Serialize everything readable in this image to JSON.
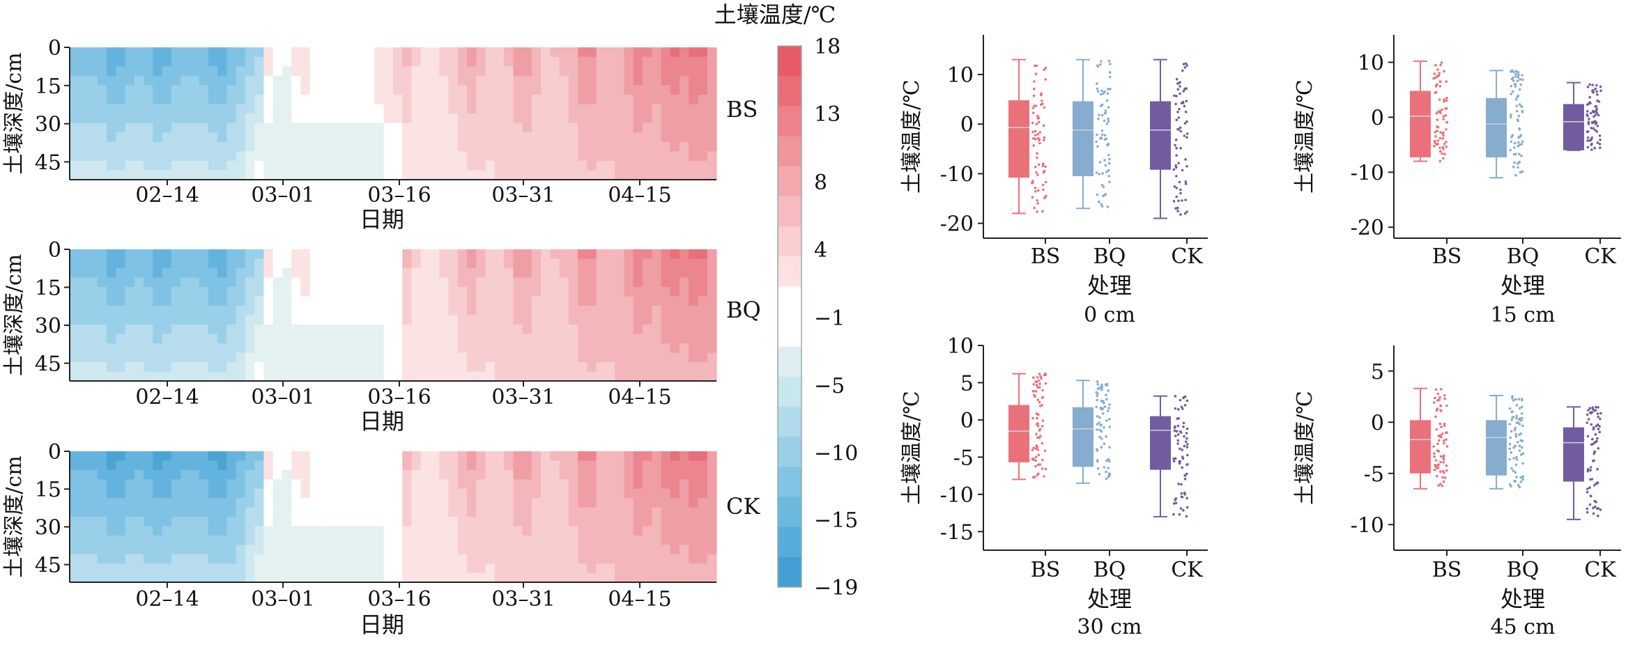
{
  "colorbar": {
    "title": "土壤温度/℃",
    "ticks": [
      "18",
      "13",
      "8",
      "4",
      "−1",
      "−5",
      "−10",
      "−15",
      "−19"
    ]
  },
  "colors": {
    "BS": "#e9717a",
    "BQ": "#86acd0",
    "CK": "#735ba0",
    "cold": "#56aedb",
    "warm": "#ec6c72"
  },
  "chart_data": [
    {
      "type": "heatmap",
      "treatment": "BS",
      "xlabel": "日期",
      "ylabel": "土壤深度/cm",
      "xticks": [
        "02–14",
        "03–01",
        "03–16",
        "03–31",
        "04–15"
      ],
      "yticks": [
        "0",
        "15",
        "30",
        "45"
      ],
      "ylim": [
        0,
        52
      ],
      "colorbar_range": [
        -19,
        18
      ],
      "description_values": "soil temperature vs date and depth"
    },
    {
      "type": "heatmap",
      "treatment": "BQ",
      "xlabel": "日期",
      "ylabel": "土壤深度/cm",
      "xticks": [
        "02–14",
        "03–01",
        "03–16",
        "03–31",
        "04–15"
      ],
      "yticks": [
        "0",
        "15",
        "30",
        "45"
      ],
      "ylim": [
        0,
        52
      ],
      "colorbar_range": [
        -19,
        18
      ]
    },
    {
      "type": "heatmap",
      "treatment": "CK",
      "xlabel": "日期",
      "ylabel": "土壤深度/cm",
      "xticks": [
        "02–14",
        "03–01",
        "03–16",
        "03–31",
        "04–15"
      ],
      "yticks": [
        "0",
        "15",
        "30",
        "45"
      ],
      "ylim": [
        0,
        52
      ],
      "colorbar_range": [
        -19,
        18
      ]
    },
    {
      "type": "box",
      "depth_label": "0 cm",
      "xlabel": "处理",
      "ylabel": "土壤温度/℃",
      "categories": [
        "BS",
        "BQ",
        "CK"
      ],
      "yticks": [
        10,
        0,
        -10,
        -20
      ],
      "ylim": [
        -23,
        18
      ],
      "boxes": [
        {
          "min": -18,
          "q1": -10.8,
          "median": -0.7,
          "q3": 4.8,
          "max": 13
        },
        {
          "min": -17,
          "q1": -10.5,
          "median": -1.2,
          "q3": 4.6,
          "max": 13
        },
        {
          "min": -19,
          "q1": -9.2,
          "median": -1.2,
          "q3": 4.6,
          "max": 13
        }
      ]
    },
    {
      "type": "box",
      "depth_label": "15 cm",
      "xlabel": "处理",
      "ylabel": "土壤温度/℃",
      "categories": [
        "BS",
        "BQ",
        "CK"
      ],
      "yticks": [
        10,
        0,
        -10,
        -20
      ],
      "ylim": [
        -22,
        15
      ],
      "boxes": [
        {
          "min": -8,
          "q1": -7.3,
          "median": 0.2,
          "q3": 4.8,
          "max": 10.2
        },
        {
          "min": -11,
          "q1": -7.3,
          "median": -1.2,
          "q3": 3.5,
          "max": 8.5
        },
        {
          "min": -6,
          "q1": -6.0,
          "median": -0.8,
          "q3": 2.4,
          "max": 6.3
        }
      ]
    },
    {
      "type": "box",
      "depth_label": "30 cm",
      "xlabel": "处理",
      "ylabel": "土壤温度/℃",
      "categories": [
        "BS",
        "BQ",
        "CK"
      ],
      "yticks": [
        10,
        5,
        0,
        -5,
        -10,
        -15
      ],
      "ylim": [
        -17.5,
        10
      ],
      "boxes": [
        {
          "min": -8,
          "q1": -5.7,
          "median": -1.5,
          "q3": 2.0,
          "max": 6.2
        },
        {
          "min": -8.5,
          "q1": -6.3,
          "median": -1.2,
          "q3": 1.7,
          "max": 5.3
        },
        {
          "min": -13,
          "q1": -6.7,
          "median": -1.4,
          "q3": 0.5,
          "max": 3.2
        }
      ]
    },
    {
      "type": "box",
      "depth_label": "45 cm",
      "xlabel": "处理",
      "ylabel": "土壤温度/℃",
      "categories": [
        "BS",
        "BQ",
        "CK"
      ],
      "yticks": [
        5,
        0,
        -5,
        -10
      ],
      "ylim": [
        -12.5,
        7.5
      ],
      "boxes": [
        {
          "min": -6.5,
          "q1": -5.0,
          "median": -1.7,
          "q3": 0.2,
          "max": 3.3
        },
        {
          "min": -6.5,
          "q1": -5.2,
          "median": -1.5,
          "q3": 0.2,
          "max": 2.6
        },
        {
          "min": -9.5,
          "q1": -5.8,
          "median": -2.0,
          "q3": -0.5,
          "max": 1.5
        }
      ]
    }
  ]
}
